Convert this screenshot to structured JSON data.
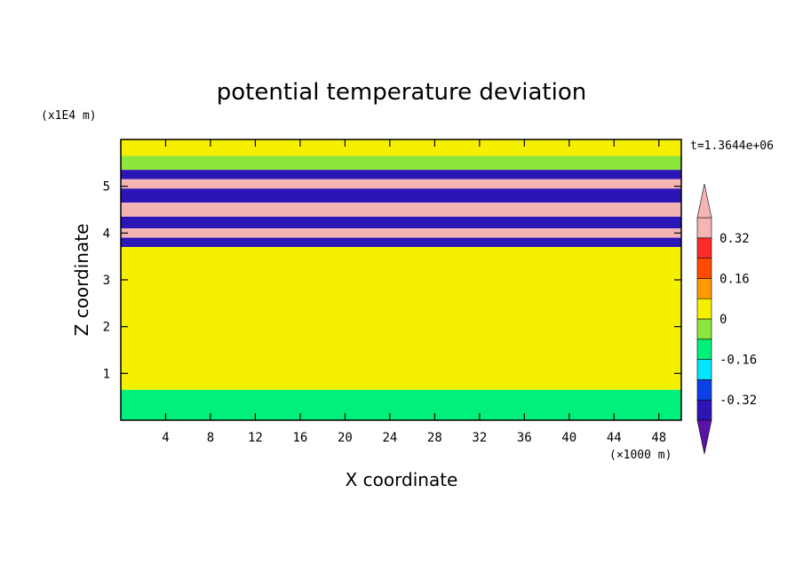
{
  "chart_data": {
    "type": "heatmap",
    "title": "potential temperature deviation",
    "xlabel": "X coordinate",
    "ylabel": "Z coordinate",
    "x_unit": "(×1000 m)",
    "y_unit": "(x1E4 m)",
    "time_label": "t=1.3644e+06",
    "xlim": [
      0,
      50
    ],
    "ylim": [
      0,
      6
    ],
    "x_ticks": [
      4,
      8,
      12,
      16,
      20,
      24,
      28,
      32,
      36,
      40,
      44,
      48
    ],
    "y_ticks": [
      1,
      2,
      3,
      4,
      5
    ],
    "colorbar": {
      "levels": [
        -0.4,
        -0.32,
        -0.24,
        -0.16,
        -0.08,
        0,
        0.08,
        0.16,
        0.24,
        0.32,
        0.4
      ],
      "labels": [
        "0.32",
        "0.16",
        "0",
        "-0.16",
        "-0.32"
      ],
      "label_values": [
        0.32,
        0.16,
        0,
        -0.16,
        -0.32
      ],
      "colors": [
        "#5a13a8",
        "#2b15b4",
        "#0a41e6",
        "#00e6ff",
        "#00f07a",
        "#8ce63c",
        "#f5f000",
        "#ff9b00",
        "#ff4a00",
        "#ff2a2a",
        "#f5b4b4"
      ],
      "extend": "both"
    },
    "bands": [
      {
        "z_range": [
          5.65,
          6.0
        ],
        "value": 0.05
      },
      {
        "z_range": [
          5.35,
          5.65
        ],
        "value": -0.05
      },
      {
        "z_range": [
          5.15,
          5.35
        ],
        "value": -0.38
      },
      {
        "z_range": [
          4.95,
          5.15
        ],
        "value": 0.45
      },
      {
        "z_range": [
          4.65,
          4.95
        ],
        "value": -0.38
      },
      {
        "z_range": [
          4.35,
          4.65
        ],
        "value": 0.45
      },
      {
        "z_range": [
          4.1,
          4.35
        ],
        "value": -0.38
      },
      {
        "z_range": [
          3.9,
          4.1
        ],
        "value": 0.45
      },
      {
        "z_range": [
          3.7,
          3.9
        ],
        "value": -0.38
      },
      {
        "z_range": [
          0.65,
          3.7
        ],
        "value": 0.0
      },
      {
        "z_range": [
          0.0,
          0.65
        ],
        "value": -0.12
      }
    ]
  }
}
